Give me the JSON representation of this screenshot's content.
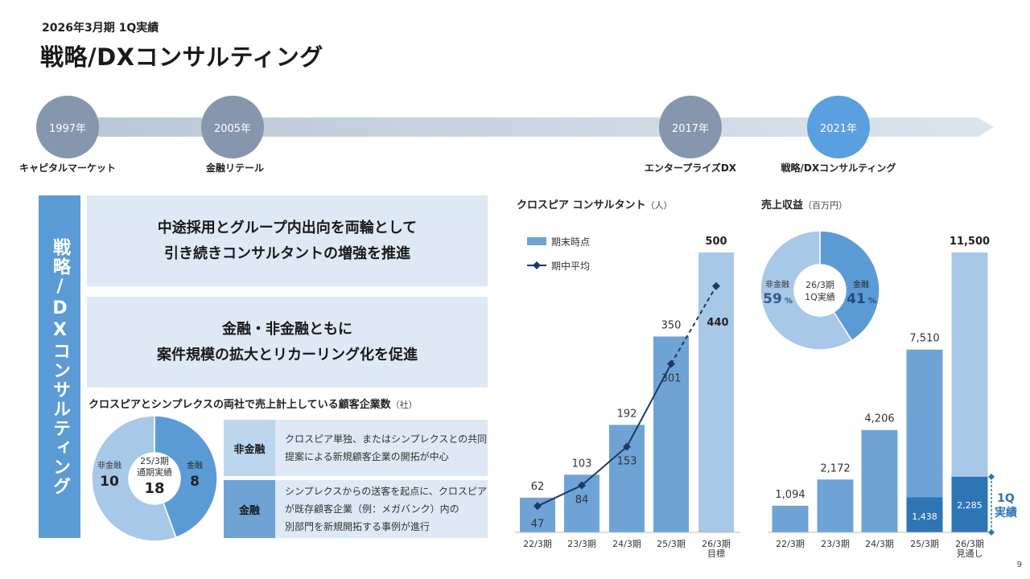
{
  "header": {
    "period": "2026年3月期 1Q実績",
    "title": "戦略/DXコンサルティング"
  },
  "timeline": [
    {
      "year": "1997年",
      "label": "キャピタルマーケット",
      "color": "#8696ac"
    },
    {
      "year": "2005年",
      "label": "金融リテール",
      "color": "#8696ac"
    },
    {
      "year": "2017年",
      "label": "エンタープライズDX",
      "color": "#8696ac"
    },
    {
      "year": "2021年",
      "label": "戦略/DXコンサルティング",
      "color": "#5a9fdf"
    }
  ],
  "side_label": "戦略/DXコンサルティング",
  "messages": [
    {
      "line1": "中途採用とグループ内出向を両輪として",
      "line2": "引き続きコンサルタントの増強を推進"
    },
    {
      "line1": "金融・非金融ともに",
      "line2": "案件規模の拡大とリカーリング化を促進"
    }
  ],
  "customer_section": {
    "title": "クロスピアとシンプレクスの両社で売上計上している顧客企業数",
    "unit": "（社）",
    "rows": [
      {
        "tag": "非金融",
        "desc1": "クロスピア単独、またはシンプレクスとの共同",
        "desc2": "提案による新規顧客企業の開拓が中心",
        "desc3": ""
      },
      {
        "tag": "金融",
        "desc1": "シンプレクスからの送客を起点に、クロスピア",
        "desc2": "が既存顧客企業（例：メガバンク）内の",
        "desc3": "別部門を新規開拓する事例が進行"
      }
    ]
  },
  "consultant_section": {
    "title": "クロスピア コンサルタント",
    "unit": "（人）"
  },
  "revenue_section": {
    "title": "売上収益",
    "unit": "（百万円）"
  },
  "colors": {
    "dark_blue": "#2e75b6",
    "mid_blue": "#6fa3d6",
    "light_blue": "#a8c8e8",
    "navy": "#1f3864",
    "accent": "#2e75b6"
  },
  "page_number": "9",
  "chart_data": [
    {
      "type": "pie",
      "title": "",
      "center_line1": "25/3期",
      "center_line2": "通期実績",
      "center_total": "18",
      "slices": [
        {
          "label": "金融",
          "value": 8,
          "display": "8"
        },
        {
          "label": "非金融",
          "value": 10,
          "display": "10"
        }
      ]
    },
    {
      "type": "bar",
      "title": "クロスピア コンサルタント",
      "categories": [
        "22/3期",
        "23/3期",
        "24/3期",
        "25/3期",
        "26/3期"
      ],
      "category_sublabels": [
        "",
        "",
        "",
        "",
        "目標"
      ],
      "series": [
        {
          "name": "期末時点",
          "values": [
            62,
            103,
            192,
            350,
            500
          ]
        },
        {
          "name": "期中平均",
          "values": [
            47,
            84,
            153,
            301,
            440
          ]
        }
      ],
      "ylim": [
        0,
        500
      ]
    },
    {
      "type": "pie",
      "title": "",
      "center_line1": "26/3期",
      "center_line2": "1Q実績",
      "slices": [
        {
          "label": "金融",
          "value": 41,
          "display": "41",
          "unit": "%"
        },
        {
          "label": "非金融",
          "value": 59,
          "display": "59",
          "unit": "%"
        }
      ]
    },
    {
      "type": "bar",
      "title": "売上収益",
      "categories": [
        "22/3期",
        "23/3期",
        "24/3期",
        "25/3期",
        "26/3期"
      ],
      "category_sublabels": [
        "",
        "",
        "",
        "",
        "見通し"
      ],
      "values": [
        1094,
        2172,
        4206,
        7510,
        11500
      ],
      "value_labels": [
        "1,094",
        "2,172",
        "4,206",
        "7,510",
        "11,500"
      ],
      "q1_values": [
        null,
        null,
        null,
        1438,
        2285
      ],
      "q1_labels": [
        "",
        "",
        "",
        "1,438",
        "2,285"
      ],
      "q1_annotation": [
        "1Q",
        "実績"
      ],
      "ylim": [
        0,
        11500
      ]
    }
  ]
}
